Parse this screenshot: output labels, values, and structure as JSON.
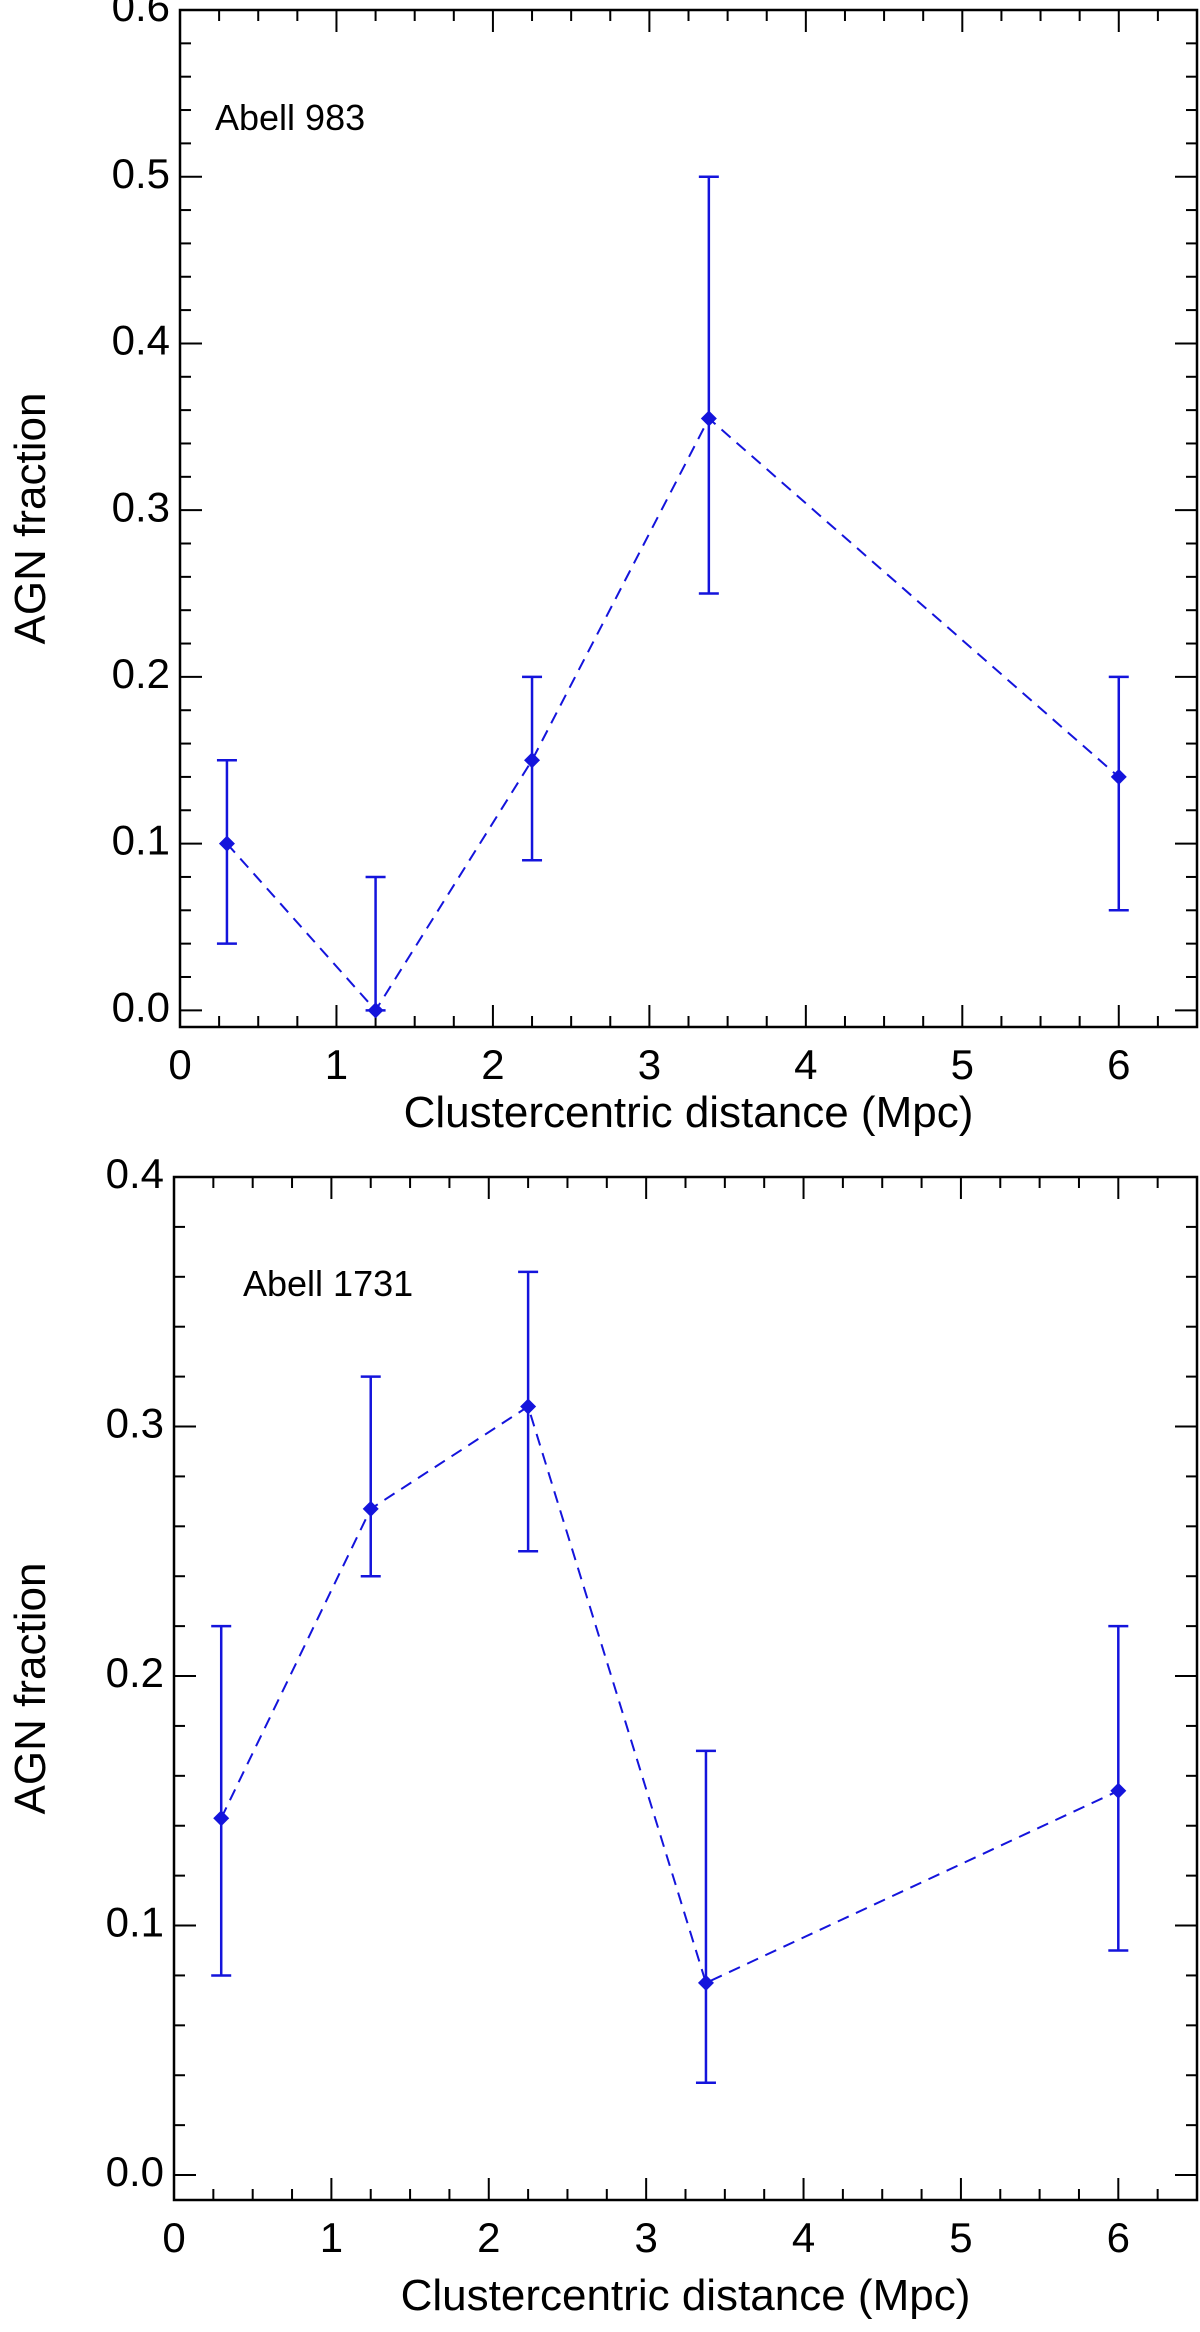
{
  "colors": {
    "series": "#1414dc",
    "axis": "#000000",
    "background": "#ffffff"
  },
  "chart_data": [
    {
      "type": "line",
      "annotation": "Abell 983",
      "xlabel": "Clustercentric distance (Mpc)",
      "ylabel": "AGN fraction",
      "xlim": [
        0,
        6.5
      ],
      "ylim": [
        -0.01,
        0.6
      ],
      "xticks": [
        0,
        1,
        2,
        3,
        4,
        5,
        6
      ],
      "xtick_labels": [
        "0",
        "1",
        "2",
        "3",
        "4",
        "5",
        "6"
      ],
      "yticks": [
        0.0,
        0.1,
        0.2,
        0.3,
        0.4,
        0.5,
        0.6
      ],
      "ytick_labels": [
        "0.0",
        "0.1",
        "0.2",
        "0.3",
        "0.4",
        "0.5",
        "0.6"
      ],
      "x_minor_step": 0.25,
      "y_minor_step": 0.02,
      "grid": false,
      "series": [
        {
          "name": "Abell 983",
          "line_style": "dashed",
          "marker": "diamond",
          "points": [
            {
              "x": 0.3,
              "y": 0.1,
              "ylow": 0.04,
              "yhigh": 0.15
            },
            {
              "x": 1.25,
              "y": 0.0,
              "ylow": 0.0,
              "yhigh": 0.08
            },
            {
              "x": 2.25,
              "y": 0.15,
              "ylow": 0.09,
              "yhigh": 0.2
            },
            {
              "x": 3.38,
              "y": 0.355,
              "ylow": 0.25,
              "yhigh": 0.5
            },
            {
              "x": 6.0,
              "y": 0.14,
              "ylow": 0.06,
              "yhigh": 0.2
            }
          ]
        }
      ]
    },
    {
      "type": "line",
      "annotation": "Abell 1731",
      "xlabel": "Clustercentric distance (Mpc)",
      "ylabel": "AGN fraction",
      "xlim": [
        0,
        6.5
      ],
      "ylim": [
        -0.01,
        0.4
      ],
      "xticks": [
        0,
        1,
        2,
        3,
        4,
        5,
        6
      ],
      "xtick_labels": [
        "0",
        "1",
        "2",
        "3",
        "4",
        "5",
        "6"
      ],
      "yticks": [
        0.0,
        0.1,
        0.2,
        0.3,
        0.4
      ],
      "ytick_labels": [
        "0.0",
        "0.1",
        "0.2",
        "0.3",
        "0.4"
      ],
      "x_minor_step": 0.25,
      "y_minor_step": 0.02,
      "grid": false,
      "series": [
        {
          "name": "Abell 1731",
          "line_style": "dashed",
          "marker": "diamond",
          "points": [
            {
              "x": 0.3,
              "y": 0.143,
              "ylow": 0.08,
              "yhigh": 0.22
            },
            {
              "x": 1.25,
              "y": 0.267,
              "ylow": 0.24,
              "yhigh": 0.32
            },
            {
              "x": 2.25,
              "y": 0.308,
              "ylow": 0.25,
              "yhigh": 0.362
            },
            {
              "x": 3.38,
              "y": 0.077,
              "ylow": 0.037,
              "yhigh": 0.17
            },
            {
              "x": 6.0,
              "y": 0.154,
              "ylow": 0.09,
              "yhigh": 0.22
            }
          ]
        }
      ]
    }
  ]
}
